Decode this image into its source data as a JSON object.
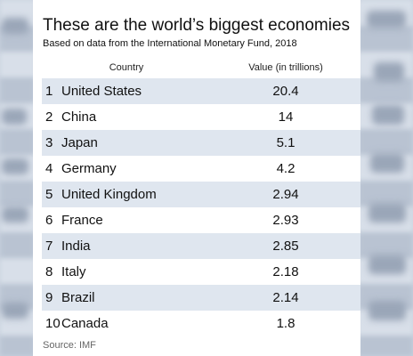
{
  "chart_data": {
    "type": "table",
    "title": "These are the world’s biggest economies",
    "subtitle": "Based on data from the International Monetary Fund, 2018",
    "columns": [
      "Country",
      "Value (in trillions)"
    ],
    "rows": [
      {
        "rank": "1",
        "country": "United States",
        "value": "20.4"
      },
      {
        "rank": "2",
        "country": "China",
        "value": "14"
      },
      {
        "rank": "3",
        "country": "Japan",
        "value": "5.1"
      },
      {
        "rank": "4",
        "country": "Germany",
        "value": "4.2"
      },
      {
        "rank": "5",
        "country": "United Kingdom",
        "value": "2.94"
      },
      {
        "rank": "6",
        "country": "France",
        "value": "2.93"
      },
      {
        "rank": "7",
        "country": "India",
        "value": "2.85"
      },
      {
        "rank": "8",
        "country": "Italy",
        "value": "2.18"
      },
      {
        "rank": "9",
        "country": "Brazil",
        "value": "2.14"
      },
      {
        "rank": "10",
        "country": "Canada",
        "value": "1.8"
      }
    ],
    "source": "Source: IMF",
    "colors": {
      "row_shade": "#dfe6ef",
      "background": "#ffffff",
      "text": "#111111"
    }
  }
}
